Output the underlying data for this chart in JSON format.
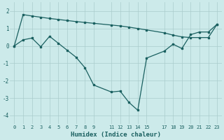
{
  "background_color": "#cceaea",
  "grid_color": "#aacccc",
  "line_color": "#1a6060",
  "xlabel": "Humidex (Indice chaleur)",
  "xlim": [
    -0.5,
    23.5
  ],
  "ylim": [
    -4.5,
    2.5
  ],
  "yticks": [
    -4,
    -3,
    -2,
    -1,
    0,
    1,
    2
  ],
  "xticks": [
    0,
    1,
    2,
    3,
    4,
    5,
    6,
    7,
    8,
    9,
    11,
    12,
    13,
    14,
    15,
    17,
    18,
    19,
    20,
    21,
    22,
    23
  ],
  "line1_x": [
    0,
    1,
    2,
    3,
    4,
    5,
    6,
    7,
    8,
    9,
    11,
    12,
    13,
    14,
    15,
    17,
    18,
    19,
    20,
    21,
    22,
    23
  ],
  "line1_y": [
    0.0,
    0.35,
    0.45,
    -0.05,
    0.55,
    0.15,
    -0.25,
    -0.65,
    -1.25,
    -2.25,
    -2.65,
    -2.6,
    -3.25,
    -3.7,
    -0.7,
    -0.3,
    0.1,
    -0.15,
    0.65,
    0.8,
    0.8,
    1.25
  ],
  "line2_x": [
    0,
    1,
    2,
    3,
    4,
    5,
    6,
    7,
    8,
    9,
    11,
    12,
    13,
    14,
    15,
    17,
    18,
    19,
    20,
    21,
    22,
    23
  ],
  "line2_y": [
    0.0,
    1.8,
    1.72,
    1.65,
    1.58,
    1.52,
    1.46,
    1.4,
    1.35,
    1.3,
    1.2,
    1.15,
    1.08,
    1.0,
    0.92,
    0.75,
    0.62,
    0.52,
    0.48,
    0.48,
    0.48,
    1.25
  ]
}
